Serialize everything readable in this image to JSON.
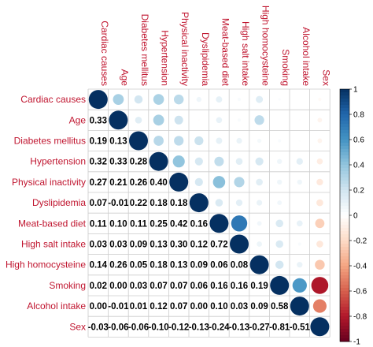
{
  "chart_data": {
    "type": "heatmap",
    "variables": [
      "Cardiac causes",
      "Age",
      "Diabetes mellitus",
      "Hypertension",
      "Physical inactivity",
      "Dyslipidemia",
      "Meat-based diet",
      "High salt intake",
      "High homocysteine",
      "Smoking",
      "Alcohol intake",
      "Sex"
    ],
    "lower_triangle_values": [
      [
        1
      ],
      [
        0.33,
        1
      ],
      [
        0.19,
        0.13,
        1
      ],
      [
        0.32,
        0.33,
        0.28,
        1
      ],
      [
        0.27,
        0.21,
        0.26,
        0.4,
        1
      ],
      [
        0.07,
        -0.01,
        0.22,
        0.18,
        0.18,
        1
      ],
      [
        0.11,
        0.1,
        0.11,
        0.25,
        0.42,
        0.16,
        1
      ],
      [
        0.03,
        0.03,
        0.09,
        0.13,
        0.3,
        0.12,
        0.72,
        1
      ],
      [
        0.14,
        0.26,
        0.05,
        0.18,
        0.13,
        0.09,
        0.06,
        0.08,
        1
      ],
      [
        0.02,
        0.0,
        0.03,
        0.07,
        0.07,
        0.06,
        0.16,
        0.16,
        0.19,
        1
      ],
      [
        0.0,
        -0.01,
        0.01,
        0.12,
        0.07,
        0.0,
        0.1,
        0.03,
        0.09,
        0.58,
        1
      ],
      [
        -0.03,
        -0.06,
        -0.06,
        -0.1,
        -0.12,
        -0.13,
        -0.24,
        -0.13,
        -0.27,
        -0.81,
        -0.51,
        1
      ]
    ],
    "lower_triangle_labels": [
      [
        ""
      ],
      [
        "0.33",
        ""
      ],
      [
        "0.19",
        "0.13",
        ""
      ],
      [
        "0.32",
        "0.33",
        "0.28",
        ""
      ],
      [
        "0.27",
        "0.21",
        "0.26",
        "0.40",
        ""
      ],
      [
        "0.07",
        "-0.01",
        "0.22",
        "0.18",
        "0.18",
        ""
      ],
      [
        "0.11",
        "0.10",
        "0.11",
        "0.25",
        "0.42",
        "0.16",
        ""
      ],
      [
        "0.03",
        "0.03",
        "0.09",
        "0.13",
        "0.30",
        "0.12",
        "0.72",
        ""
      ],
      [
        "0.14",
        "0.26",
        "0.05",
        "0.18",
        "0.13",
        "0.09",
        "0.06",
        "0.08",
        ""
      ],
      [
        "0.02",
        "0.00",
        "0.03",
        "0.07",
        "0.07",
        "0.06",
        "0.16",
        "0.16",
        "0.19",
        ""
      ],
      [
        "0.00",
        "-0.01",
        "0.01",
        "0.12",
        "0.07",
        "0.00",
        "0.10",
        "0.03",
        "0.09",
        "0.58",
        ""
      ],
      [
        "-0.03",
        "-0.06",
        "-0.06",
        "-0.10",
        "-0.12",
        "-0.13",
        "-0.24",
        "-0.13",
        "-0.27",
        "-0.81",
        "-0.51",
        ""
      ]
    ],
    "upper_display": "circles",
    "lower_display": "numbers",
    "diagonal_display": "circles",
    "color_range": [
      -1,
      1
    ],
    "colorbar_ticks": [
      {
        "value": 1,
        "label": "1"
      },
      {
        "value": 0.8,
        "label": "0.8"
      },
      {
        "value": 0.6,
        "label": "0.6"
      },
      {
        "value": 0.4,
        "label": "0.4"
      },
      {
        "value": 0.2,
        "label": "0.2"
      },
      {
        "value": 0,
        "label": "0"
      },
      {
        "value": -0.2,
        "label": "-0.2"
      },
      {
        "value": -0.4,
        "label": "-0.4"
      },
      {
        "value": -0.6,
        "label": "-0.6"
      },
      {
        "value": -0.8,
        "label": "-0.8"
      },
      {
        "value": -1,
        "label": "-1"
      }
    ],
    "colors": {
      "negative": "#67001f",
      "zero": "#ffffff",
      "positive": "#053061",
      "label": "#c0152f",
      "grid": "#cccccc"
    },
    "grid": true,
    "legend": "right"
  }
}
